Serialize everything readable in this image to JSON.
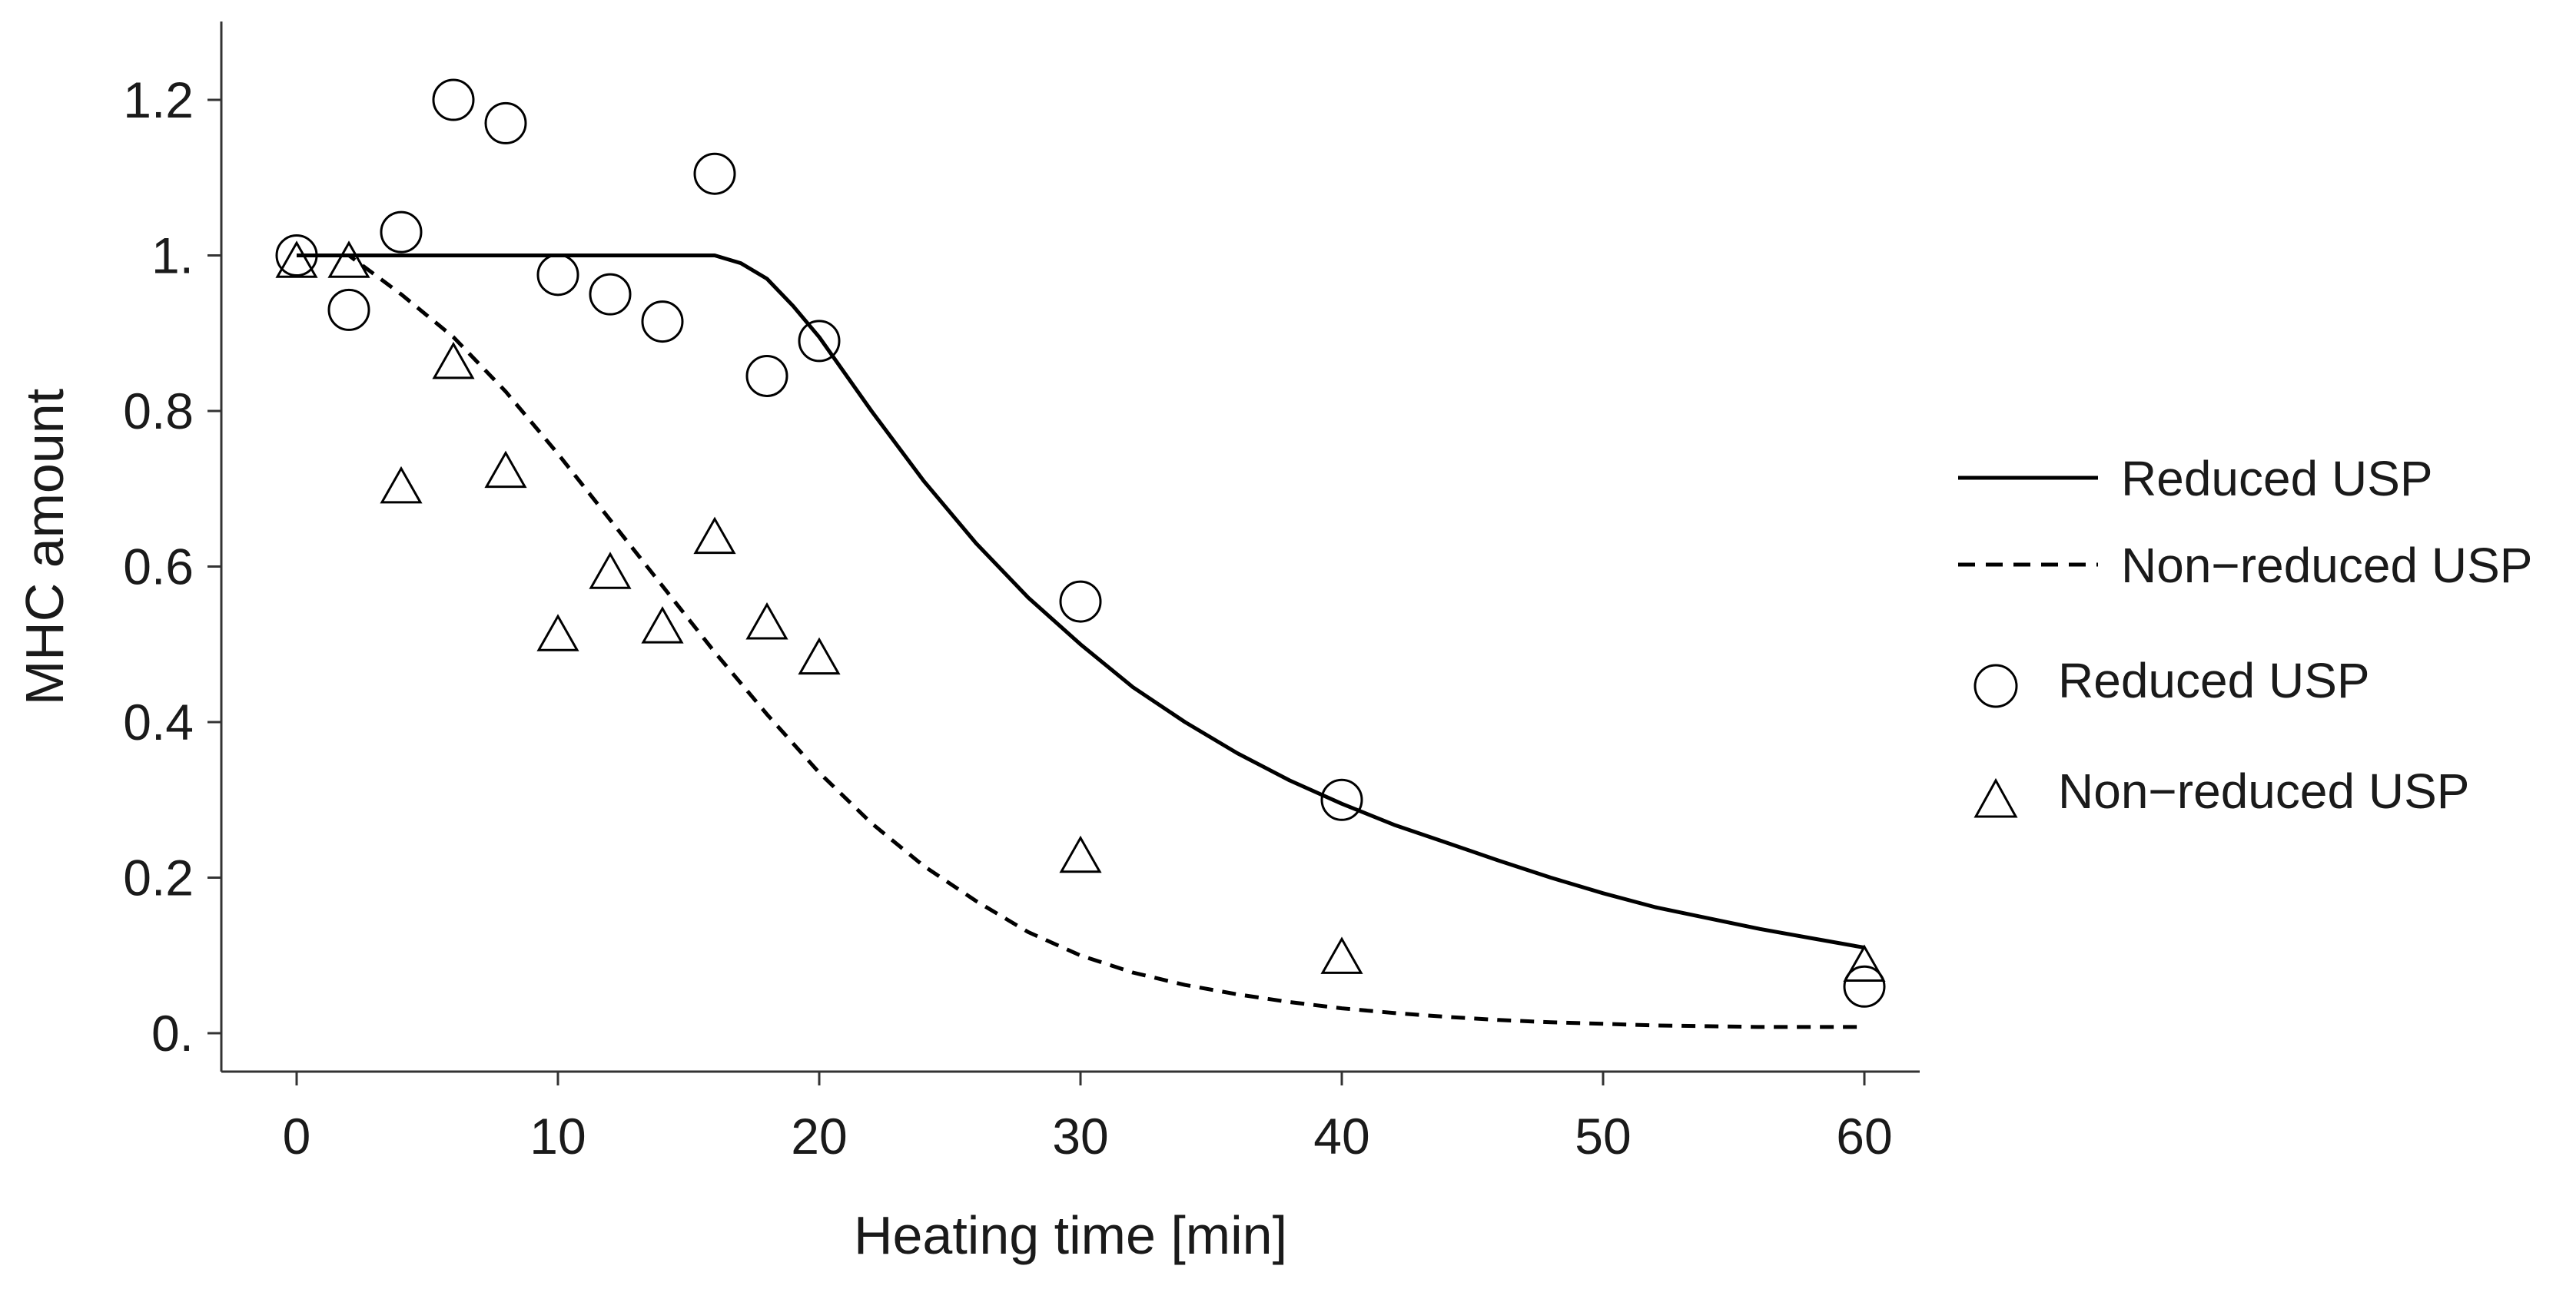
{
  "chart_data": {
    "type": "scatter",
    "title": "",
    "xlabel": "Heating time  [min]",
    "ylabel": "MHC amount",
    "xlim": [
      -3,
      62
    ],
    "ylim": [
      -0.05,
      1.3
    ],
    "x_ticks": [
      0,
      10,
      20,
      30,
      40,
      50,
      60
    ],
    "x_tick_labels": [
      "0",
      "10",
      "20",
      "30",
      "40",
      "50",
      "60"
    ],
    "y_ticks": [
      0,
      0.2,
      0.4,
      0.6,
      0.8,
      1.0,
      1.2
    ],
    "y_tick_labels": [
      "0.",
      "0.2",
      "0.4",
      "0.6",
      "0.8",
      "1.",
      "1.2"
    ],
    "grid": false,
    "legend_position": "right",
    "series": [
      {
        "name": "Reduced USP",
        "kind": "points",
        "marker": "circle",
        "x": [
          0,
          2,
          4,
          6,
          8,
          10,
          12,
          14,
          16,
          18,
          20,
          30,
          40,
          60
        ],
        "y": [
          1.0,
          0.93,
          1.03,
          1.2,
          1.17,
          0.975,
          0.95,
          0.915,
          1.105,
          0.845,
          0.89,
          0.555,
          0.3,
          0.06
        ]
      },
      {
        "name": "Non-reduced USP",
        "kind": "points",
        "marker": "triangle",
        "x": [
          0,
          2,
          4,
          6,
          8,
          10,
          12,
          14,
          16,
          18,
          20,
          30,
          40,
          60
        ],
        "y": [
          0.99,
          0.99,
          0.7,
          0.86,
          0.72,
          0.51,
          0.59,
          0.52,
          0.635,
          0.525,
          0.48,
          0.225,
          0.095,
          0.085
        ]
      },
      {
        "name": "Reduced USP",
        "kind": "line",
        "dash": "solid",
        "x": [
          0,
          2,
          4,
          6,
          8,
          10,
          12,
          14,
          15,
          16,
          17,
          18,
          19,
          20,
          22,
          24,
          26,
          28,
          30,
          32,
          34,
          36,
          38,
          40,
          42,
          44,
          46,
          48,
          50,
          52,
          54,
          56,
          58,
          60
        ],
        "y": [
          1.0,
          1.0,
          1.0,
          1.0,
          1.0,
          1.0,
          1.0,
          1.0,
          1.0,
          1.0,
          0.99,
          0.97,
          0.935,
          0.895,
          0.8,
          0.71,
          0.63,
          0.56,
          0.5,
          0.445,
          0.4,
          0.36,
          0.325,
          0.295,
          0.268,
          0.245,
          0.222,
          0.2,
          0.18,
          0.162,
          0.148,
          0.134,
          0.122,
          0.11
        ]
      },
      {
        "name": "Non-reduced USP",
        "kind": "line",
        "dash": "dashed",
        "x": [
          0,
          2,
          4,
          6,
          8,
          10,
          12,
          14,
          16,
          18,
          20,
          22,
          24,
          26,
          28,
          30,
          32,
          34,
          36,
          38,
          40,
          42,
          44,
          46,
          48,
          50,
          52,
          54,
          56,
          58,
          60
        ],
        "y": [
          1.0,
          1.0,
          0.95,
          0.895,
          0.825,
          0.745,
          0.66,
          0.575,
          0.49,
          0.41,
          0.335,
          0.27,
          0.215,
          0.17,
          0.13,
          0.1,
          0.078,
          0.062,
          0.05,
          0.04,
          0.032,
          0.026,
          0.021,
          0.017,
          0.014,
          0.012,
          0.01,
          0.009,
          0.008,
          0.008,
          0.008
        ]
      }
    ],
    "legend": [
      {
        "label": "Reduced USP",
        "symbol": "solid-line"
      },
      {
        "label": "Non−reduced USP",
        "symbol": "dashed-line"
      },
      {
        "label": "Reduced USP",
        "symbol": "circle"
      },
      {
        "label": "Non−reduced USP",
        "symbol": "triangle"
      }
    ]
  }
}
